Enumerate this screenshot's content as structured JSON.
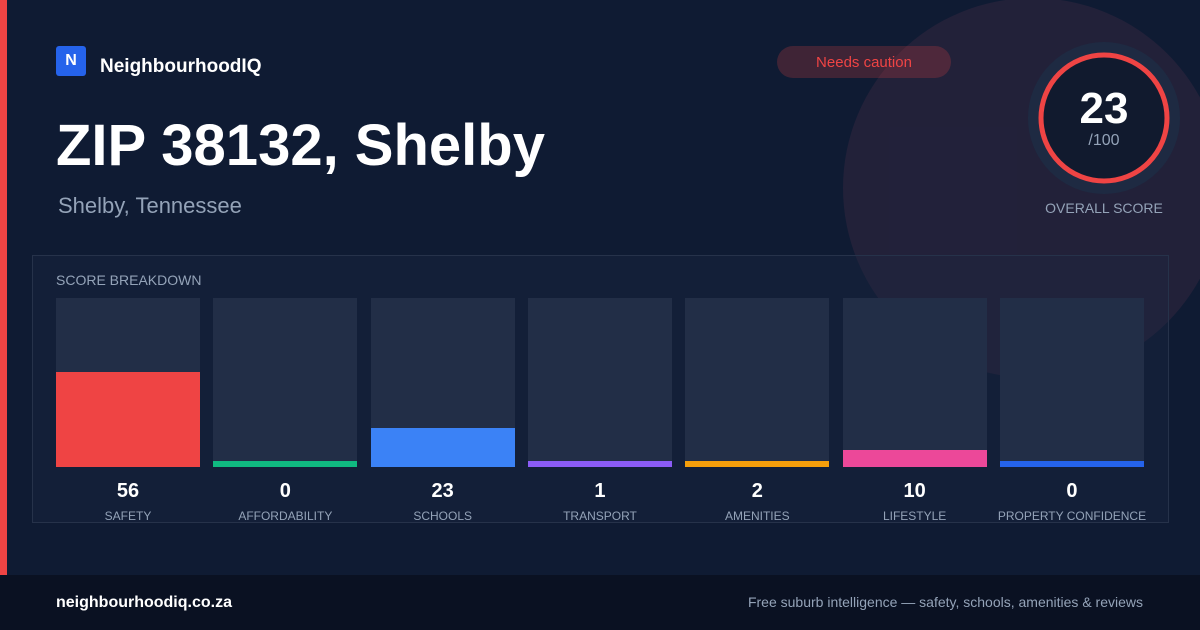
{
  "brand": {
    "logo": "N",
    "name": "NeighbourhoodIQ"
  },
  "badge": "Needs caution",
  "title": "ZIP 38132, Shelby",
  "subtitle": "Shelby, Tennessee",
  "overall": {
    "score": 23,
    "max": "/100",
    "label": "OVERALL SCORE"
  },
  "breakdown": {
    "title": "SCORE BREAKDOWN",
    "ylim": [
      0,
      100
    ],
    "items": [
      {
        "label": "SAFETY",
        "value": 56,
        "color": "#ef4444"
      },
      {
        "label": "AFFORDABILITY",
        "value": 0,
        "color": "#10b981"
      },
      {
        "label": "SCHOOLS",
        "value": 23,
        "color": "#3b82f6"
      },
      {
        "label": "TRANSPORT",
        "value": 1,
        "color": "#8b5cf6"
      },
      {
        "label": "AMENITIES",
        "value": 2,
        "color": "#f59e0b"
      },
      {
        "label": "LIFESTYLE",
        "value": 10,
        "color": "#ec4899"
      },
      {
        "label": "PROPERTY CONFIDENCE",
        "value": 0,
        "color": "#2563eb"
      }
    ]
  },
  "footer": {
    "site": "neighbourhoodiq.co.za",
    "tagline": "Free suburb intelligence — safety, schools, amenities & reviews"
  }
}
